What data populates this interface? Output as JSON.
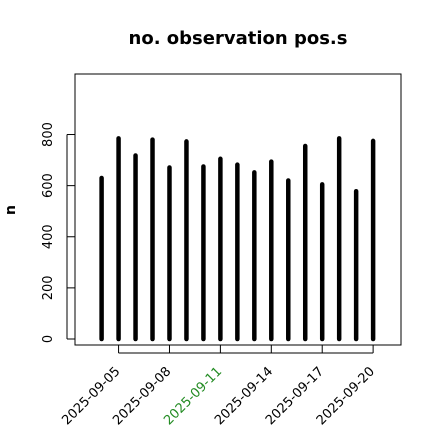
{
  "chart_data": {
    "type": "bar",
    "title": "no. observation pos.s",
    "xlabel": "",
    "ylabel": "n",
    "categories": [
      "2025-09-04",
      "2025-09-05",
      "2025-09-06",
      "2025-09-07",
      "2025-09-08",
      "2025-09-09",
      "2025-09-10",
      "2025-09-11",
      "2025-09-12",
      "2025-09-13",
      "2025-09-14",
      "2025-09-15",
      "2025-09-16",
      "2025-09-17",
      "2025-09-18",
      "2025-09-19",
      "2025-09-20"
    ],
    "values": [
      630,
      785,
      718,
      780,
      671,
      773,
      675,
      705,
      682,
      652,
      694,
      620,
      755,
      605,
      785,
      578,
      775
    ],
    "ylim": [
      0,
      1000
    ],
    "yticks": [
      0,
      200,
      400,
      600,
      800
    ],
    "xtick_labels": [
      {
        "label": "2025-09-05",
        "color": "#000000"
      },
      {
        "label": "2025-09-08",
        "color": "#000000"
      },
      {
        "label": "2025-09-11",
        "color": "#228B22"
      },
      {
        "label": "2025-09-14",
        "color": "#000000"
      },
      {
        "label": "2025-09-17",
        "color": "#000000"
      },
      {
        "label": "2025-09-20",
        "color": "#000000"
      }
    ],
    "bar_color": "#000000",
    "grid": false
  }
}
